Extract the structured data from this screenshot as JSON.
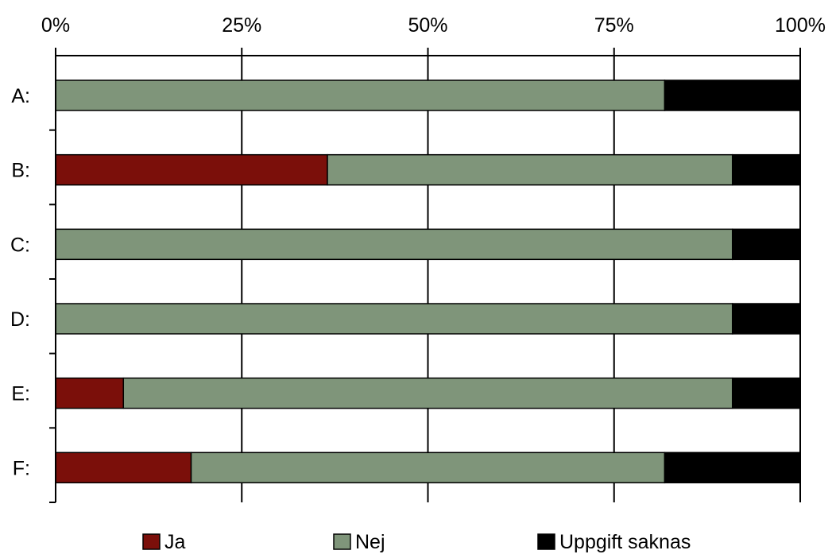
{
  "chart_data": {
    "type": "bar",
    "orientation": "horizontal",
    "stacked": true,
    "percent_scale": true,
    "categories": [
      "A:",
      "B:",
      "C:",
      "D:",
      "E:",
      "F:"
    ],
    "series": [
      {
        "name": "Ja",
        "color": "#7b0f0a",
        "values": [
          0,
          36.5,
          0,
          0,
          9.1,
          18.2
        ]
      },
      {
        "name": "Nej",
        "color": "#7f957a",
        "values": [
          81.8,
          54.4,
          90.9,
          90.9,
          81.8,
          63.6
        ]
      },
      {
        "name": "Uppgift saknas",
        "color": "#000000",
        "values": [
          18.2,
          9.1,
          9.1,
          9.1,
          9.1,
          18.2
        ]
      }
    ],
    "xlim": [
      0,
      100
    ],
    "x_ticks": [
      0,
      25,
      50,
      75,
      100
    ],
    "x_tick_labels": [
      "0%",
      "25%",
      "50%",
      "75%",
      "100%"
    ],
    "x_axis_position": "top",
    "grid": "vertical",
    "legend_position": "bottom"
  }
}
